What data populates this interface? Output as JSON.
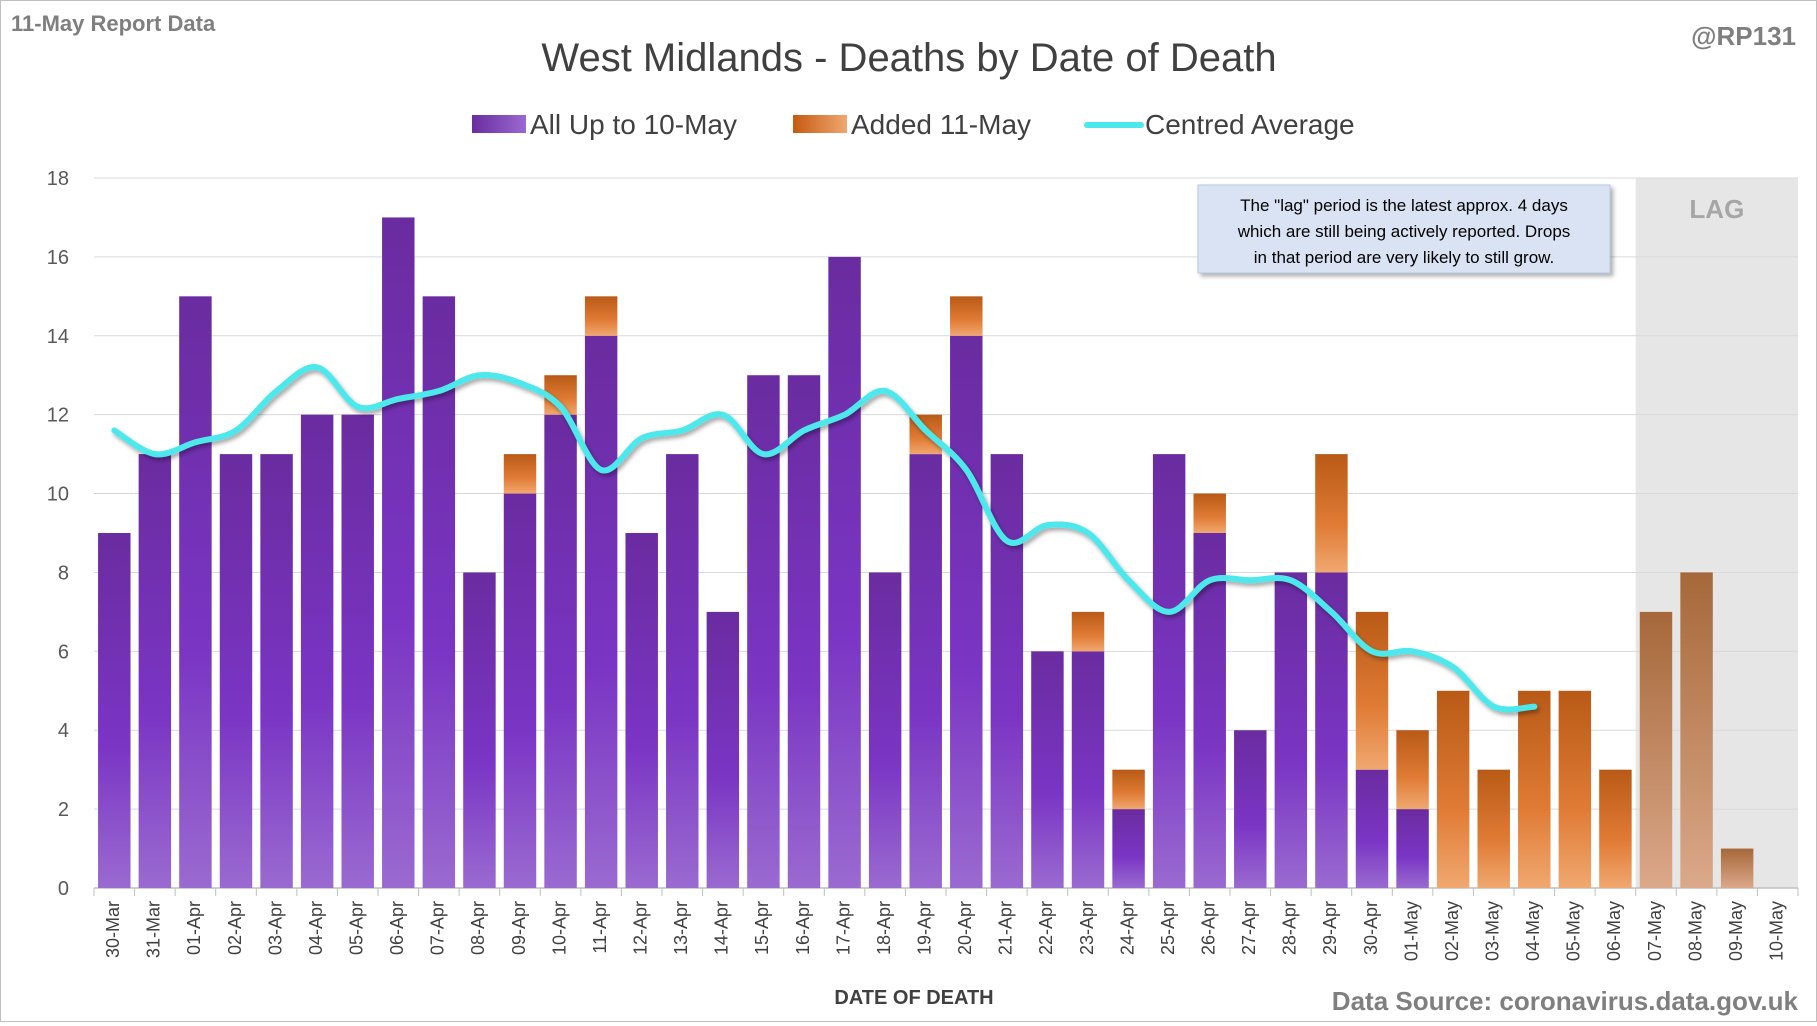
{
  "header": {
    "report_label": "11-May Report Data",
    "handle": "@RP131"
  },
  "footer": {
    "source": "Data Source: coronavirus.data.gov.uk"
  },
  "colors": {
    "base_bar": "#7030a0",
    "added_bar": "#c55a11",
    "average_line": "#4de8ec",
    "lag_shade": "#e6e6e6",
    "gridline": "#d9d9d9"
  },
  "chart_data": {
    "type": "bar",
    "stacked": true,
    "title": "West Midlands - Deaths by Date of Death",
    "xlabel": "DATE OF DEATH",
    "ylabel": "",
    "ylim": [
      0,
      18
    ],
    "yticks": [
      0,
      2,
      4,
      6,
      8,
      10,
      12,
      14,
      16,
      18
    ],
    "grid": true,
    "legend_position": "top-center",
    "categories": [
      "30-Mar",
      "31-Mar",
      "01-Apr",
      "02-Apr",
      "03-Apr",
      "04-Apr",
      "05-Apr",
      "06-Apr",
      "07-Apr",
      "08-Apr",
      "09-Apr",
      "10-Apr",
      "11-Apr",
      "12-Apr",
      "13-Apr",
      "14-Apr",
      "15-Apr",
      "16-Apr",
      "17-Apr",
      "18-Apr",
      "19-Apr",
      "20-Apr",
      "21-Apr",
      "22-Apr",
      "23-Apr",
      "24-Apr",
      "25-Apr",
      "26-Apr",
      "27-Apr",
      "28-Apr",
      "29-Apr",
      "30-Apr",
      "01-May",
      "02-May",
      "03-May",
      "04-May",
      "05-May",
      "06-May",
      "07-May",
      "08-May",
      "09-May",
      "10-May"
    ],
    "series": [
      {
        "name": "All Up to 10-May",
        "kind": "bar",
        "color": "#7030a0",
        "values": [
          9,
          11,
          15,
          11,
          11,
          12,
          12,
          17,
          15,
          8,
          10,
          12,
          14,
          9,
          11,
          7,
          13,
          13,
          16,
          8,
          11,
          14,
          11,
          6,
          6,
          2,
          11,
          9,
          4,
          8,
          8,
          3,
          2,
          0,
          0,
          0,
          0,
          0,
          0,
          0,
          0,
          0
        ]
      },
      {
        "name": "Added 11-May",
        "kind": "bar",
        "color": "#c55a11",
        "values": [
          0,
          0,
          0,
          0,
          0,
          0,
          0,
          0,
          0,
          0,
          1,
          1,
          1,
          0,
          0,
          0,
          0,
          0,
          0,
          0,
          1,
          1,
          0,
          0,
          1,
          1,
          0,
          1,
          0,
          0,
          3,
          4,
          2,
          5,
          3,
          5,
          5,
          3,
          7,
          8,
          1,
          0
        ]
      },
      {
        "name": "Centred Average",
        "kind": "line",
        "color": "#4de8ec",
        "values": [
          11.6,
          11.0,
          11.3,
          11.6,
          12.6,
          13.2,
          12.2,
          12.4,
          12.6,
          13.0,
          12.8,
          12.2,
          10.6,
          11.4,
          11.6,
          12.0,
          11.0,
          11.6,
          12.0,
          12.6,
          11.6,
          10.6,
          8.8,
          9.2,
          9.0,
          7.8,
          7.0,
          7.8,
          7.8,
          7.8,
          7.0,
          6.0,
          6.0,
          5.6,
          4.6,
          4.6,
          null,
          null,
          null,
          null,
          null,
          null
        ]
      }
    ],
    "lag_region": {
      "label": "LAG",
      "from_category": "07-May",
      "to_category": "10-May"
    },
    "annotation": {
      "lines": [
        "The \"lag\" period is the latest approx. 4 days",
        "which are still being actively reported.  Drops",
        "in that period are very likely to still grow."
      ]
    }
  }
}
